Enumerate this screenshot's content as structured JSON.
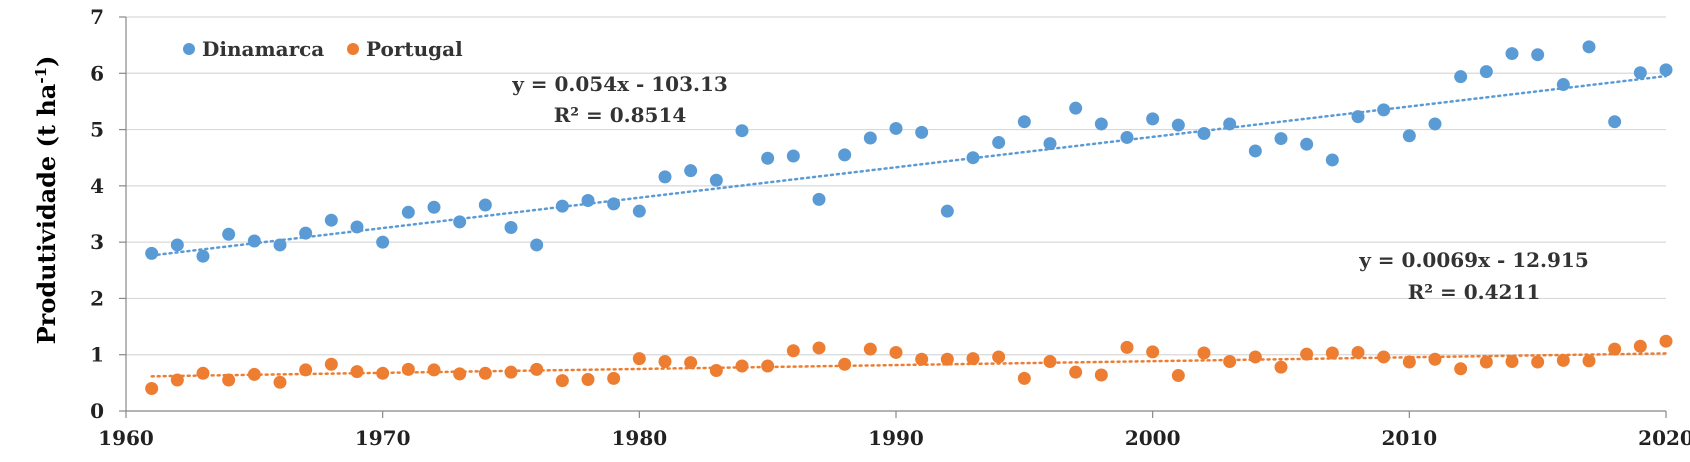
{
  "chart_data": {
    "type": "scatter",
    "title": "",
    "xlabel": "",
    "ylabel": "Produtividade (t ha",
    "ylabel_sup": "-1",
    "ylabel_end": ")",
    "xlim": [
      1960,
      2020
    ],
    "ylim": [
      0,
      7
    ],
    "xticks": [
      1960,
      1970,
      1980,
      1990,
      2000,
      2010,
      2020
    ],
    "xtick_labels": [
      "1960",
      "1970",
      "1980",
      "1990",
      "2000",
      "2010",
      "2020"
    ],
    "yticks": [
      0,
      1,
      2,
      3,
      4,
      5,
      6,
      7
    ],
    "ytick_labels": [
      "0",
      "1",
      "2",
      "3",
      "4",
      "5",
      "6",
      "7"
    ],
    "grid": "horizontal",
    "legend_position": "top-left",
    "series": [
      {
        "name": "Dinamarca",
        "color": "#5b9bd5",
        "x": [
          1961,
          1962,
          1963,
          1964,
          1965,
          1966,
          1967,
          1968,
          1969,
          1970,
          1971,
          1972,
          1973,
          1974,
          1975,
          1976,
          1977,
          1978,
          1979,
          1980,
          1981,
          1982,
          1983,
          1984,
          1985,
          1986,
          1987,
          1988,
          1989,
          1990,
          1991,
          1992,
          1993,
          1994,
          1995,
          1996,
          1997,
          1998,
          1999,
          2000,
          2001,
          2002,
          2003,
          2004,
          2005,
          2006,
          2007,
          2008,
          2009,
          2010,
          2011,
          2012,
          2013,
          2014,
          2015,
          2016,
          2017,
          2018,
          2019,
          2020
        ],
        "y": [
          2.8,
          2.95,
          2.75,
          3.14,
          3.02,
          2.95,
          3.16,
          3.39,
          3.27,
          3.0,
          3.53,
          3.62,
          3.36,
          3.66,
          3.26,
          2.95,
          3.64,
          3.74,
          3.68,
          3.55,
          4.16,
          4.27,
          4.1,
          4.98,
          4.49,
          4.53,
          3.76,
          4.55,
          4.85,
          5.02,
          4.95,
          3.55,
          4.5,
          4.77,
          5.14,
          4.75,
          5.38,
          5.1,
          4.86,
          5.19,
          5.08,
          4.93,
          5.1,
          4.62,
          4.84,
          4.74,
          4.46,
          5.23,
          5.35,
          4.89,
          5.1,
          5.94,
          6.03,
          6.35,
          6.33,
          5.8,
          6.47,
          5.14,
          6.01,
          6.06
        ],
        "trendline": {
          "slope": 0.054,
          "intercept": -103.13,
          "r2": 0.8514,
          "equation": "y = 0.054x - 103.13",
          "r2_label": "R² = 0.8514"
        }
      },
      {
        "name": "Portugal",
        "color": "#ed7d31",
        "x": [
          1961,
          1962,
          1963,
          1964,
          1965,
          1966,
          1967,
          1968,
          1969,
          1970,
          1971,
          1972,
          1973,
          1974,
          1975,
          1976,
          1977,
          1978,
          1979,
          1980,
          1981,
          1982,
          1983,
          1984,
          1985,
          1986,
          1987,
          1988,
          1989,
          1990,
          1991,
          1992,
          1993,
          1994,
          1995,
          1996,
          1997,
          1998,
          1999,
          2000,
          2001,
          2002,
          2003,
          2004,
          2005,
          2006,
          2007,
          2008,
          2009,
          2010,
          2011,
          2012,
          2013,
          2014,
          2015,
          2016,
          2017,
          2018,
          2019,
          2020
        ],
        "y": [
          0.4,
          0.55,
          0.67,
          0.55,
          0.65,
          0.51,
          0.73,
          0.83,
          0.7,
          0.67,
          0.74,
          0.73,
          0.66,
          0.67,
          0.69,
          0.74,
          0.54,
          0.56,
          0.58,
          0.93,
          0.88,
          0.86,
          0.72,
          0.8,
          0.8,
          1.07,
          1.12,
          0.83,
          1.1,
          1.04,
          0.92,
          0.92,
          0.93,
          0.96,
          0.58,
          0.88,
          0.69,
          0.64,
          1.13,
          1.05,
          0.63,
          1.03,
          0.88,
          0.96,
          0.78,
          1.01,
          1.03,
          1.04,
          0.96,
          0.87,
          0.92,
          0.75,
          0.87,
          0.88,
          0.87,
          0.9,
          0.89,
          1.1,
          1.15,
          1.24
        ],
        "trendline": {
          "slope": 0.0069,
          "intercept": -12.915,
          "r2": 0.4211,
          "equation": "y = 0.0069x - 12.915",
          "r2_label": "R² = 0.4211"
        }
      }
    ]
  }
}
